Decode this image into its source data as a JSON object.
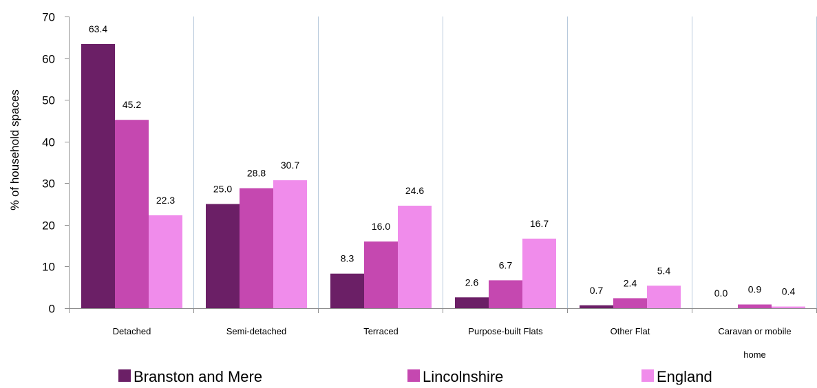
{
  "chart_data": {
    "type": "bar",
    "title": "",
    "xlabel": "",
    "ylabel": "% of household spaces",
    "ylim": [
      0,
      70
    ],
    "yticks": [
      0,
      10,
      20,
      30,
      40,
      50,
      60,
      70
    ],
    "grid": "vertical lines between categories",
    "legend_position": "bottom",
    "categories": [
      [
        "Detached"
      ],
      [
        "Semi-detached"
      ],
      [
        "Terraced"
      ],
      [
        "Purpose-built Flats"
      ],
      [
        "Other Flat"
      ],
      [
        "Caravan or mobile",
        "home"
      ]
    ],
    "series": [
      {
        "name": "Branston and Mere",
        "color": "#6b1f66",
        "values": [
          63.4,
          25.0,
          8.3,
          2.6,
          0.7,
          0.0
        ]
      },
      {
        "name": "Lincolnshire",
        "color": "#c548b0",
        "values": [
          45.2,
          28.8,
          16.0,
          6.7,
          2.4,
          0.9
        ]
      },
      {
        "name": "England",
        "color": "#f08ceb",
        "values": [
          22.3,
          30.7,
          24.6,
          16.7,
          5.4,
          0.4
        ]
      }
    ]
  }
}
